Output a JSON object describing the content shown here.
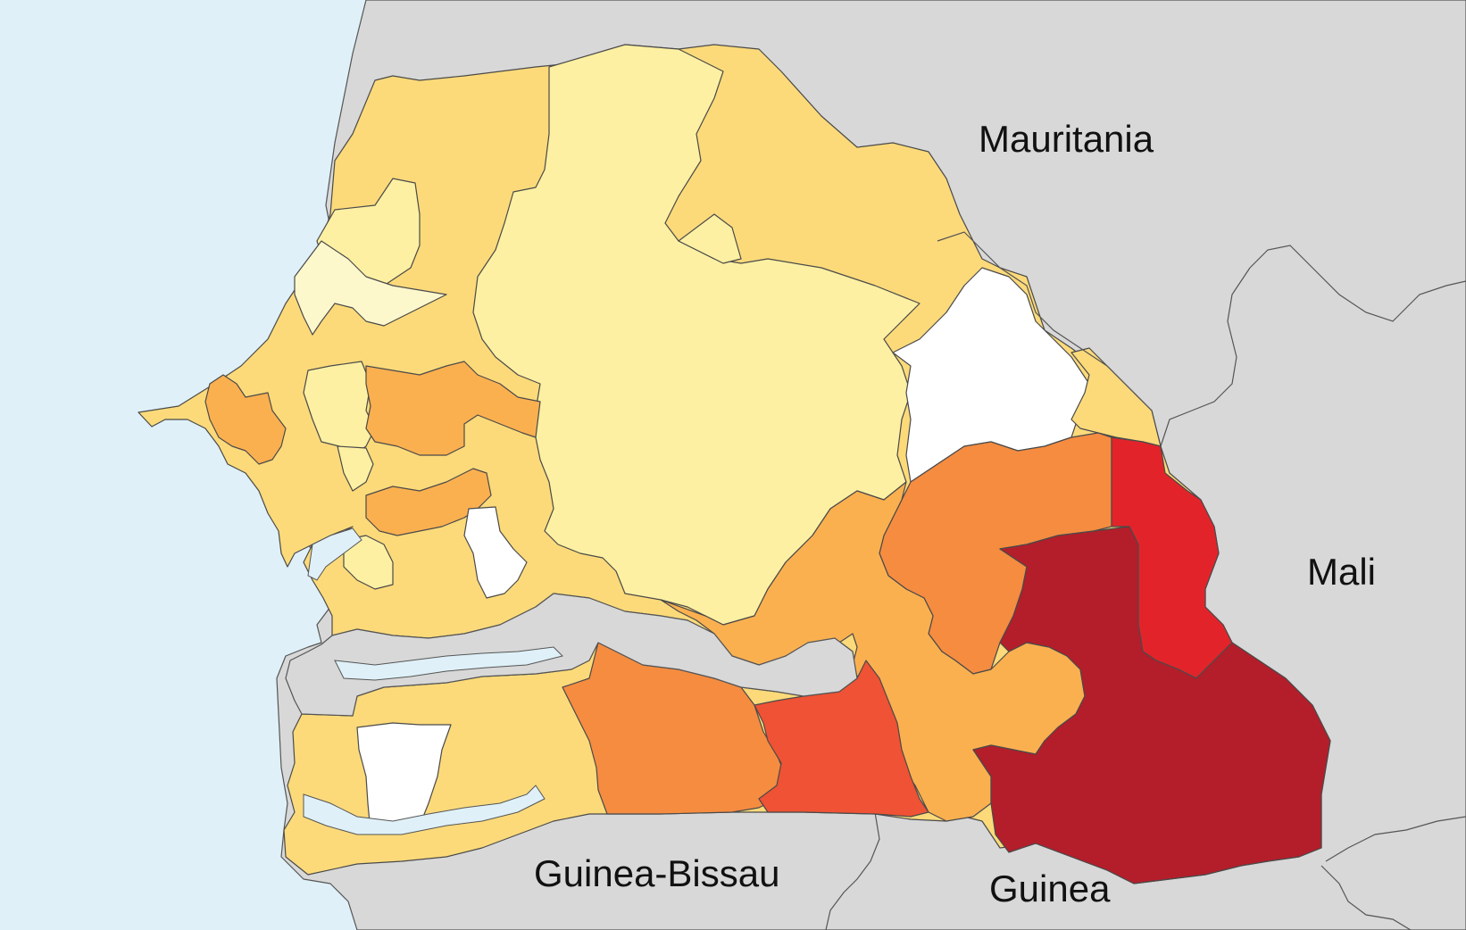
{
  "labels": {
    "mauritania": "Mauritania",
    "mali": "Mali",
    "guinea_bissau": "Guinea-Bissau",
    "guinea": "Guinea"
  },
  "colors": {
    "ocean": "#dff0f8",
    "neighbor_land": "#d8d8d8",
    "border": "#4a4a4a",
    "scale": [
      "#ffffff",
      "#fdf8cc",
      "#fdf0a2",
      "#fcda7a",
      "#fbb050",
      "#f58c40",
      "#ef5234",
      "#e2242a",
      "#b31e2a"
    ]
  }
}
